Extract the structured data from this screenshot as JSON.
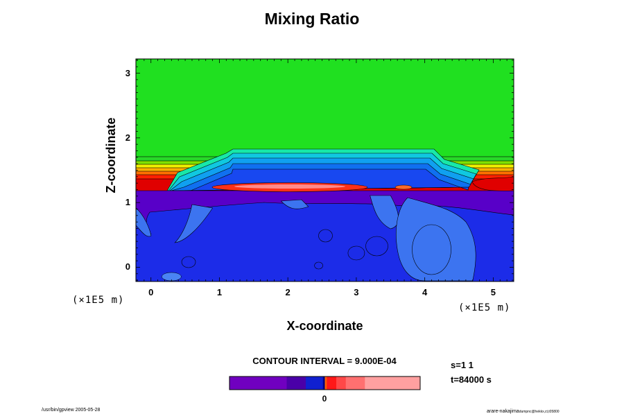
{
  "chart_data": {
    "type": "heatmap",
    "title": "Mixing Ratio",
    "xlabel": "X-coordinate",
    "ylabel": "Z-coordinate",
    "x_unit": "(×1E5 m)",
    "y_unit": "(×1E5 m)",
    "xlim": [
      -0.22,
      5.3
    ],
    "ylim": [
      -0.22,
      3.22
    ],
    "x_ticks": [
      "0",
      "1",
      "2",
      "3",
      "4",
      "5"
    ],
    "y_ticks": [
      "0",
      "1",
      "2",
      "3"
    ],
    "contour_interval_text": "CONTOUR INTERVAL = 9.000E-04",
    "colorbar": {
      "zero_label": "0",
      "segments": [
        {
          "color": "#7000c0",
          "span": 0.3
        },
        {
          "color": "#4a00a8",
          "span": 0.1
        },
        {
          "color": "#1020d0",
          "span": 0.09
        },
        {
          "color": "#000080",
          "span": 0.01
        },
        {
          "color": "#ff6000",
          "span": 0.01
        },
        {
          "color": "#ff1818",
          "span": 0.05
        },
        {
          "color": "#ff4848",
          "span": 0.05
        },
        {
          "color": "#ff7070",
          "span": 0.1
        },
        {
          "color": "#ffa0a0",
          "span": 0.29
        }
      ]
    },
    "regions": {
      "upper_layer_color": "#20e020",
      "lower_layer_color": "#1c2ce8",
      "mid_band_colors": [
        "#28d828",
        "#80e000",
        "#f0f000",
        "#ffb000",
        "#ff7000",
        "#ff2000",
        "#e00000"
      ],
      "cloud_layer_colors": [
        "#18e8a8",
        "#10c8e0",
        "#10a0f0",
        "#1070f0",
        "#1848f0"
      ],
      "cool_layer_color": "#5800c8",
      "plume_color": "#3c74f0",
      "anomaly_color": "#ff3018"
    },
    "grid": false
  },
  "info": {
    "step": "s=1 1",
    "time": "t=84000 s"
  },
  "footer": {
    "left": "/usr/bin/gpview 2005-05-28",
    "right_main": "arare-nakajima",
    "right_sub": "dumpnc@hekkx,ct,t05800"
  }
}
